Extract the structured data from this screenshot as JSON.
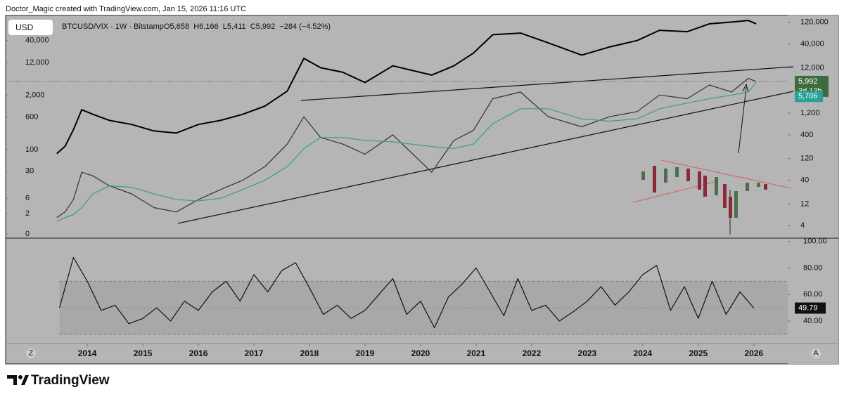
{
  "header": {
    "credit": "Doctor_Magic created with TradingView.com, Jan 15, 2026 11:16 UTC",
    "currency": "USD"
  },
  "footer": {
    "brand": "TradingView"
  },
  "ui": {
    "z_button": "Z",
    "a_button": "A"
  },
  "chart_data": [
    {
      "type": "line",
      "title": "BTCUSD/VIX · 1W · Bitstamp",
      "ohlc": "O5,658  H6,166  L5,411  C5,992  −284 (−4.52%)",
      "x": [
        2013.45,
        2013.6,
        2013.75,
        2013.9,
        2014.1,
        2014.4,
        2014.8,
        2015.2,
        2015.6,
        2016.0,
        2016.4,
        2016.8,
        2017.2,
        2017.6,
        2017.9,
        2018.2,
        2018.6,
        2019.0,
        2019.5,
        2020.2,
        2020.6,
        2020.95,
        2021.3,
        2021.8,
        2022.3,
        2022.9,
        2023.4,
        2023.9,
        2024.3,
        2024.8,
        2025.2,
        2025.6,
        2025.9,
        2026.04
      ],
      "xlim": [
        2012.53,
        2026.61
      ],
      "xticks": [
        2014,
        2015,
        2016,
        2017,
        2018,
        2019,
        2020,
        2021,
        2022,
        2023,
        2024,
        2025,
        2026
      ],
      "yscale": "log",
      "ylim": [
        2.2,
        170000
      ],
      "yticks": [
        {
          "value": 120000,
          "label": "120,000"
        },
        {
          "value": 40000,
          "label": "40,000"
        },
        {
          "value": 12000,
          "label": "12,000"
        },
        {
          "value": 1200,
          "label": "1,200"
        },
        400,
        120,
        40,
        12,
        4
      ],
      "y2scale": "log1p",
      "y2lim": [
        -0.18,
        158000
      ],
      "y2ticks": [
        {
          "value": 40000,
          "label": "40,000"
        },
        {
          "value": 12000,
          "label": "12,000"
        },
        {
          "value": 2000,
          "label": "2,000"
        },
        600,
        100,
        30,
        6,
        2,
        0
      ],
      "series": [
        {
          "color": "#000000",
          "axis": "y2",
          "values": [
            80,
            120,
            300,
            900,
            700,
            500,
            400,
            280,
            250,
            400,
            500,
            700,
            1100,
            2500,
            15000,
            9000,
            7000,
            4000,
            10000,
            6000,
            10000,
            20000,
            55000,
            60000,
            35000,
            18000,
            28000,
            40000,
            70000,
            65000,
            100000,
            110000,
            120000,
            100000
          ]
        },
        {
          "color": "#333333",
          "values": [
            6,
            8,
            15,
            60,
            50,
            30,
            20,
            10,
            8,
            15,
            25,
            40,
            80,
            250,
            1000,
            350,
            250,
            150,
            400,
            60,
            300,
            500,
            2500,
            3500,
            1000,
            600,
            1000,
            1300,
            3000,
            2500,
            5000,
            3500,
            7000,
            5992
          ]
        },
        {
          "color": "#3a9c8c",
          "values": [
            5,
            6,
            7,
            10,
            20,
            30,
            28,
            20,
            15,
            14,
            16,
            25,
            40,
            80,
            200,
            350,
            350,
            300,
            280,
            220,
            200,
            250,
            700,
            1500,
            1500,
            900,
            800,
            900,
            1500,
            2000,
            2500,
            3000,
            3500,
            5706
          ]
        }
      ],
      "last_price": {
        "value": 5992,
        "label": "5,992"
      },
      "countdown": "3d 13h",
      "ma_last": {
        "value": 5706,
        "label": "5,706"
      }
    },
    {
      "type": "line",
      "x": [
        2013.5,
        2013.75,
        2014.0,
        2014.25,
        2014.5,
        2014.75,
        2015.0,
        2015.25,
        2015.5,
        2015.75,
        2016.0,
        2016.25,
        2016.5,
        2016.75,
        2017.0,
        2017.25,
        2017.5,
        2017.75,
        2018.0,
        2018.25,
        2018.5,
        2018.75,
        2019.0,
        2019.25,
        2019.5,
        2019.75,
        2020.0,
        2020.25,
        2020.5,
        2020.75,
        2021.0,
        2021.25,
        2021.5,
        2021.75,
        2022.0,
        2022.25,
        2022.5,
        2022.75,
        2023.0,
        2023.25,
        2023.5,
        2023.75,
        2024.0,
        2024.25,
        2024.5,
        2024.75,
        2025.0,
        2025.25,
        2025.5,
        2025.75,
        2026.0
      ],
      "xlim": [
        2012.53,
        2026.61
      ],
      "ylim": [
        23.6,
        102
      ],
      "yticks": [
        {
          "value": 100,
          "label": "100.00"
        },
        {
          "value": 80,
          "label": "80.00"
        },
        {
          "value": 60,
          "label": "60.00"
        },
        {
          "value": 40,
          "label": "40.00"
        }
      ],
      "band": [
        30,
        70
      ],
      "midline": 50,
      "series": [
        {
          "color": "#111111",
          "values": [
            50,
            88,
            70,
            48,
            52,
            38,
            42,
            50,
            40,
            55,
            48,
            62,
            70,
            55,
            75,
            62,
            78,
            84,
            65,
            45,
            52,
            42,
            48,
            60,
            72,
            45,
            55,
            35,
            58,
            68,
            80,
            62,
            44,
            72,
            48,
            52,
            40,
            47,
            55,
            66,
            52,
            62,
            75,
            82,
            48,
            66,
            42,
            70,
            45,
            62,
            49.79
          ]
        }
      ],
      "last_value": 49.79
    }
  ]
}
